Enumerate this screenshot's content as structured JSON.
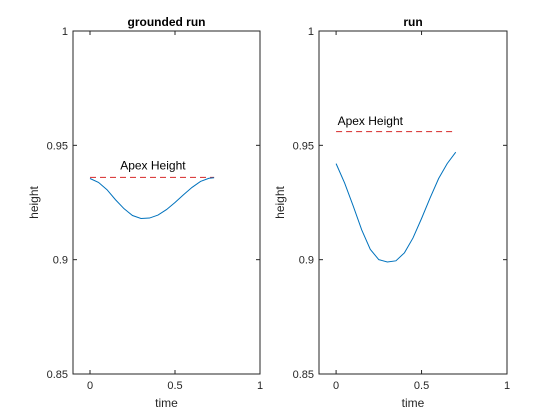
{
  "chart_data": [
    {
      "type": "line",
      "title": "grounded run",
      "xlabel": "time",
      "ylabel": "height",
      "xlim": [
        -0.1,
        1
      ],
      "ylim": [
        0.85,
        1
      ],
      "xticks": [
        0,
        0.5,
        1
      ],
      "xtick_labels": [
        "0",
        "0.5",
        "1"
      ],
      "yticks": [
        0.85,
        0.9,
        0.95,
        1
      ],
      "ytick_labels": [
        "0.85",
        "0.9",
        "0.95",
        "1"
      ],
      "grid": false,
      "series": [
        {
          "color": "#0072BD",
          "x": [
            0,
            0.05,
            0.1,
            0.15,
            0.2,
            0.25,
            0.3,
            0.35,
            0.4,
            0.45,
            0.5,
            0.55,
            0.6,
            0.65,
            0.7,
            0.73
          ],
          "y": [
            0.9355,
            0.9338,
            0.9306,
            0.9262,
            0.9223,
            0.9193,
            0.918,
            0.9182,
            0.9195,
            0.9219,
            0.925,
            0.9284,
            0.9316,
            0.9342,
            0.9356,
            0.9358
          ]
        }
      ],
      "reference_line": {
        "y": 0.936,
        "x": [
          0,
          0.73
        ],
        "color": "#D62728",
        "style": "dashed"
      },
      "annotation": {
        "text": "Apex Height",
        "x": 0.37,
        "y": 0.9395
      }
    },
    {
      "type": "line",
      "title": "run",
      "xlabel": "time",
      "ylabel": "height",
      "xlim": [
        -0.1,
        1
      ],
      "ylim": [
        0.85,
        1
      ],
      "xticks": [
        0,
        0.5,
        1
      ],
      "xtick_labels": [
        "0",
        "0.5",
        "1"
      ],
      "yticks": [
        0.85,
        0.9,
        0.95,
        1
      ],
      "ytick_labels": [
        "0.85",
        "0.9",
        "0.95",
        "1"
      ],
      "grid": false,
      "series": [
        {
          "color": "#0072BD",
          "x": [
            0,
            0.05,
            0.1,
            0.15,
            0.2,
            0.25,
            0.3,
            0.35,
            0.4,
            0.45,
            0.5,
            0.55,
            0.6,
            0.65,
            0.7
          ],
          "y": [
            0.942,
            0.9335,
            0.9235,
            0.913,
            0.9045,
            0.9,
            0.899,
            0.8995,
            0.903,
            0.9095,
            0.918,
            0.927,
            0.9355,
            0.942,
            0.947
          ]
        }
      ],
      "reference_line": {
        "y": 0.956,
        "x": 0,
        "x_end": 0.7,
        "color": "#D62728",
        "style": "dashed"
      },
      "annotation": {
        "text": "Apex Height",
        "x": 0.2,
        "y": 0.959
      }
    }
  ]
}
